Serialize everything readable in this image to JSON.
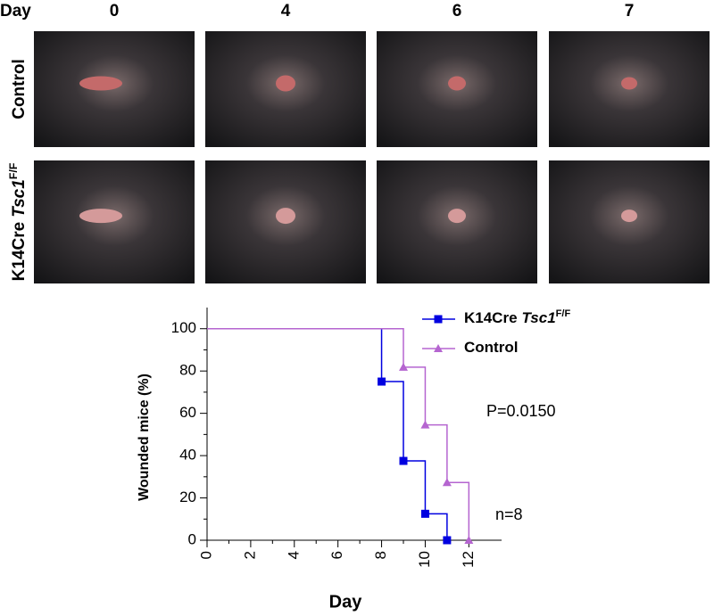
{
  "panel": {
    "header": "Day",
    "columns": [
      "0",
      "4",
      "6",
      "7"
    ],
    "rows": [
      {
        "text": "Control"
      },
      {
        "text": "K14Cre",
        "gene": "Tsc1",
        "superscript": "F/F"
      }
    ]
  },
  "chart_data": {
    "type": "step",
    "xlabel": "Day",
    "ylabel": "Wounded mice (%)",
    "xlim": [
      0,
      13.5
    ],
    "ylim": [
      0,
      110
    ],
    "xticks": [
      0,
      2,
      4,
      6,
      8,
      10,
      12
    ],
    "yticks": [
      0,
      20,
      40,
      60,
      80,
      100
    ],
    "series": [
      {
        "name": {
          "text": "K14Cre",
          "gene": "Tsc1",
          "superscript": "F/F"
        },
        "color": "#0000e0",
        "marker": "square",
        "x": [
          0,
          8,
          9,
          10,
          11
        ],
        "values": [
          100,
          75,
          37.5,
          12.5,
          0
        ]
      },
      {
        "name": {
          "text": "Control"
        },
        "color": "#b565d0",
        "marker": "triangle",
        "x": [
          0,
          9,
          10,
          11,
          12
        ],
        "values": [
          100,
          81.8,
          54.5,
          27.3,
          0
        ]
      }
    ],
    "annotations": [
      "P=0.0150",
      "n=8"
    ]
  }
}
